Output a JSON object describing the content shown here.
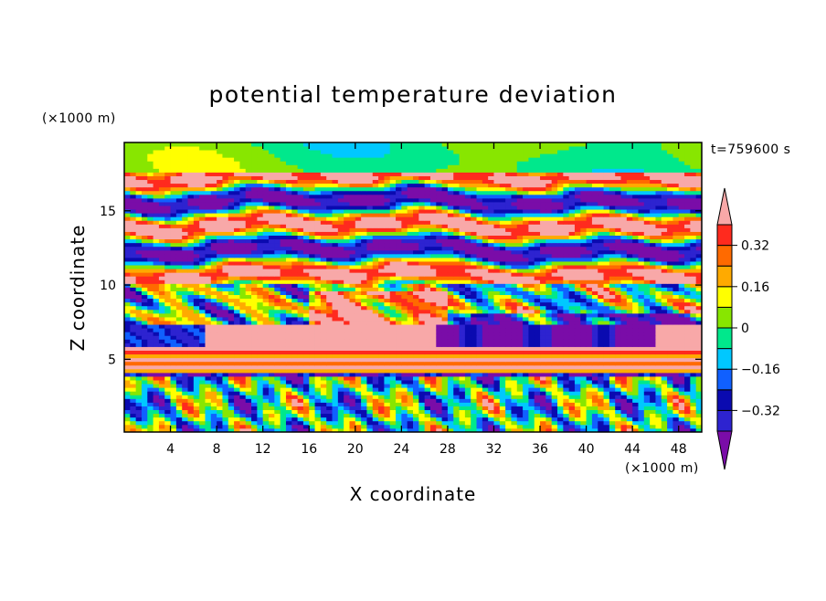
{
  "chart_data": {
    "type": "heatmap",
    "title": "potential temperature deviation",
    "xlabel": "X coordinate",
    "ylabel": "Z coordinate",
    "x_unit": "(×1000 m)",
    "y_unit": "(×1000 m)",
    "time_label": "t=759600 s",
    "xlim": [
      0,
      50
    ],
    "ylim": [
      0.1,
      19.6
    ],
    "x_ticks": [
      4,
      8,
      12,
      16,
      20,
      24,
      28,
      32,
      36,
      40,
      44,
      48
    ],
    "y_ticks": [
      5,
      10,
      15
    ],
    "colorbar": {
      "levels": [
        -0.4,
        -0.32,
        -0.24,
        -0.16,
        -0.08,
        0,
        0.08,
        0.16,
        0.24,
        0.32,
        0.4
      ],
      "labels": [
        "0.32",
        "0.16",
        "0",
        "−0.16",
        "−0.32"
      ],
      "label_values": [
        0.32,
        0.16,
        0,
        -0.16,
        -0.32
      ],
      "colors": [
        "#7a0ca8",
        "#2d23d0",
        "#0a0ab0",
        "#1060ff",
        "#00c8ff",
        "#00e88c",
        "#88e600",
        "#ffff00",
        "#ffaa00",
        "#ff6a00",
        "#ff2a1e",
        "#f8a8a8"
      ],
      "extend": "both"
    }
  }
}
